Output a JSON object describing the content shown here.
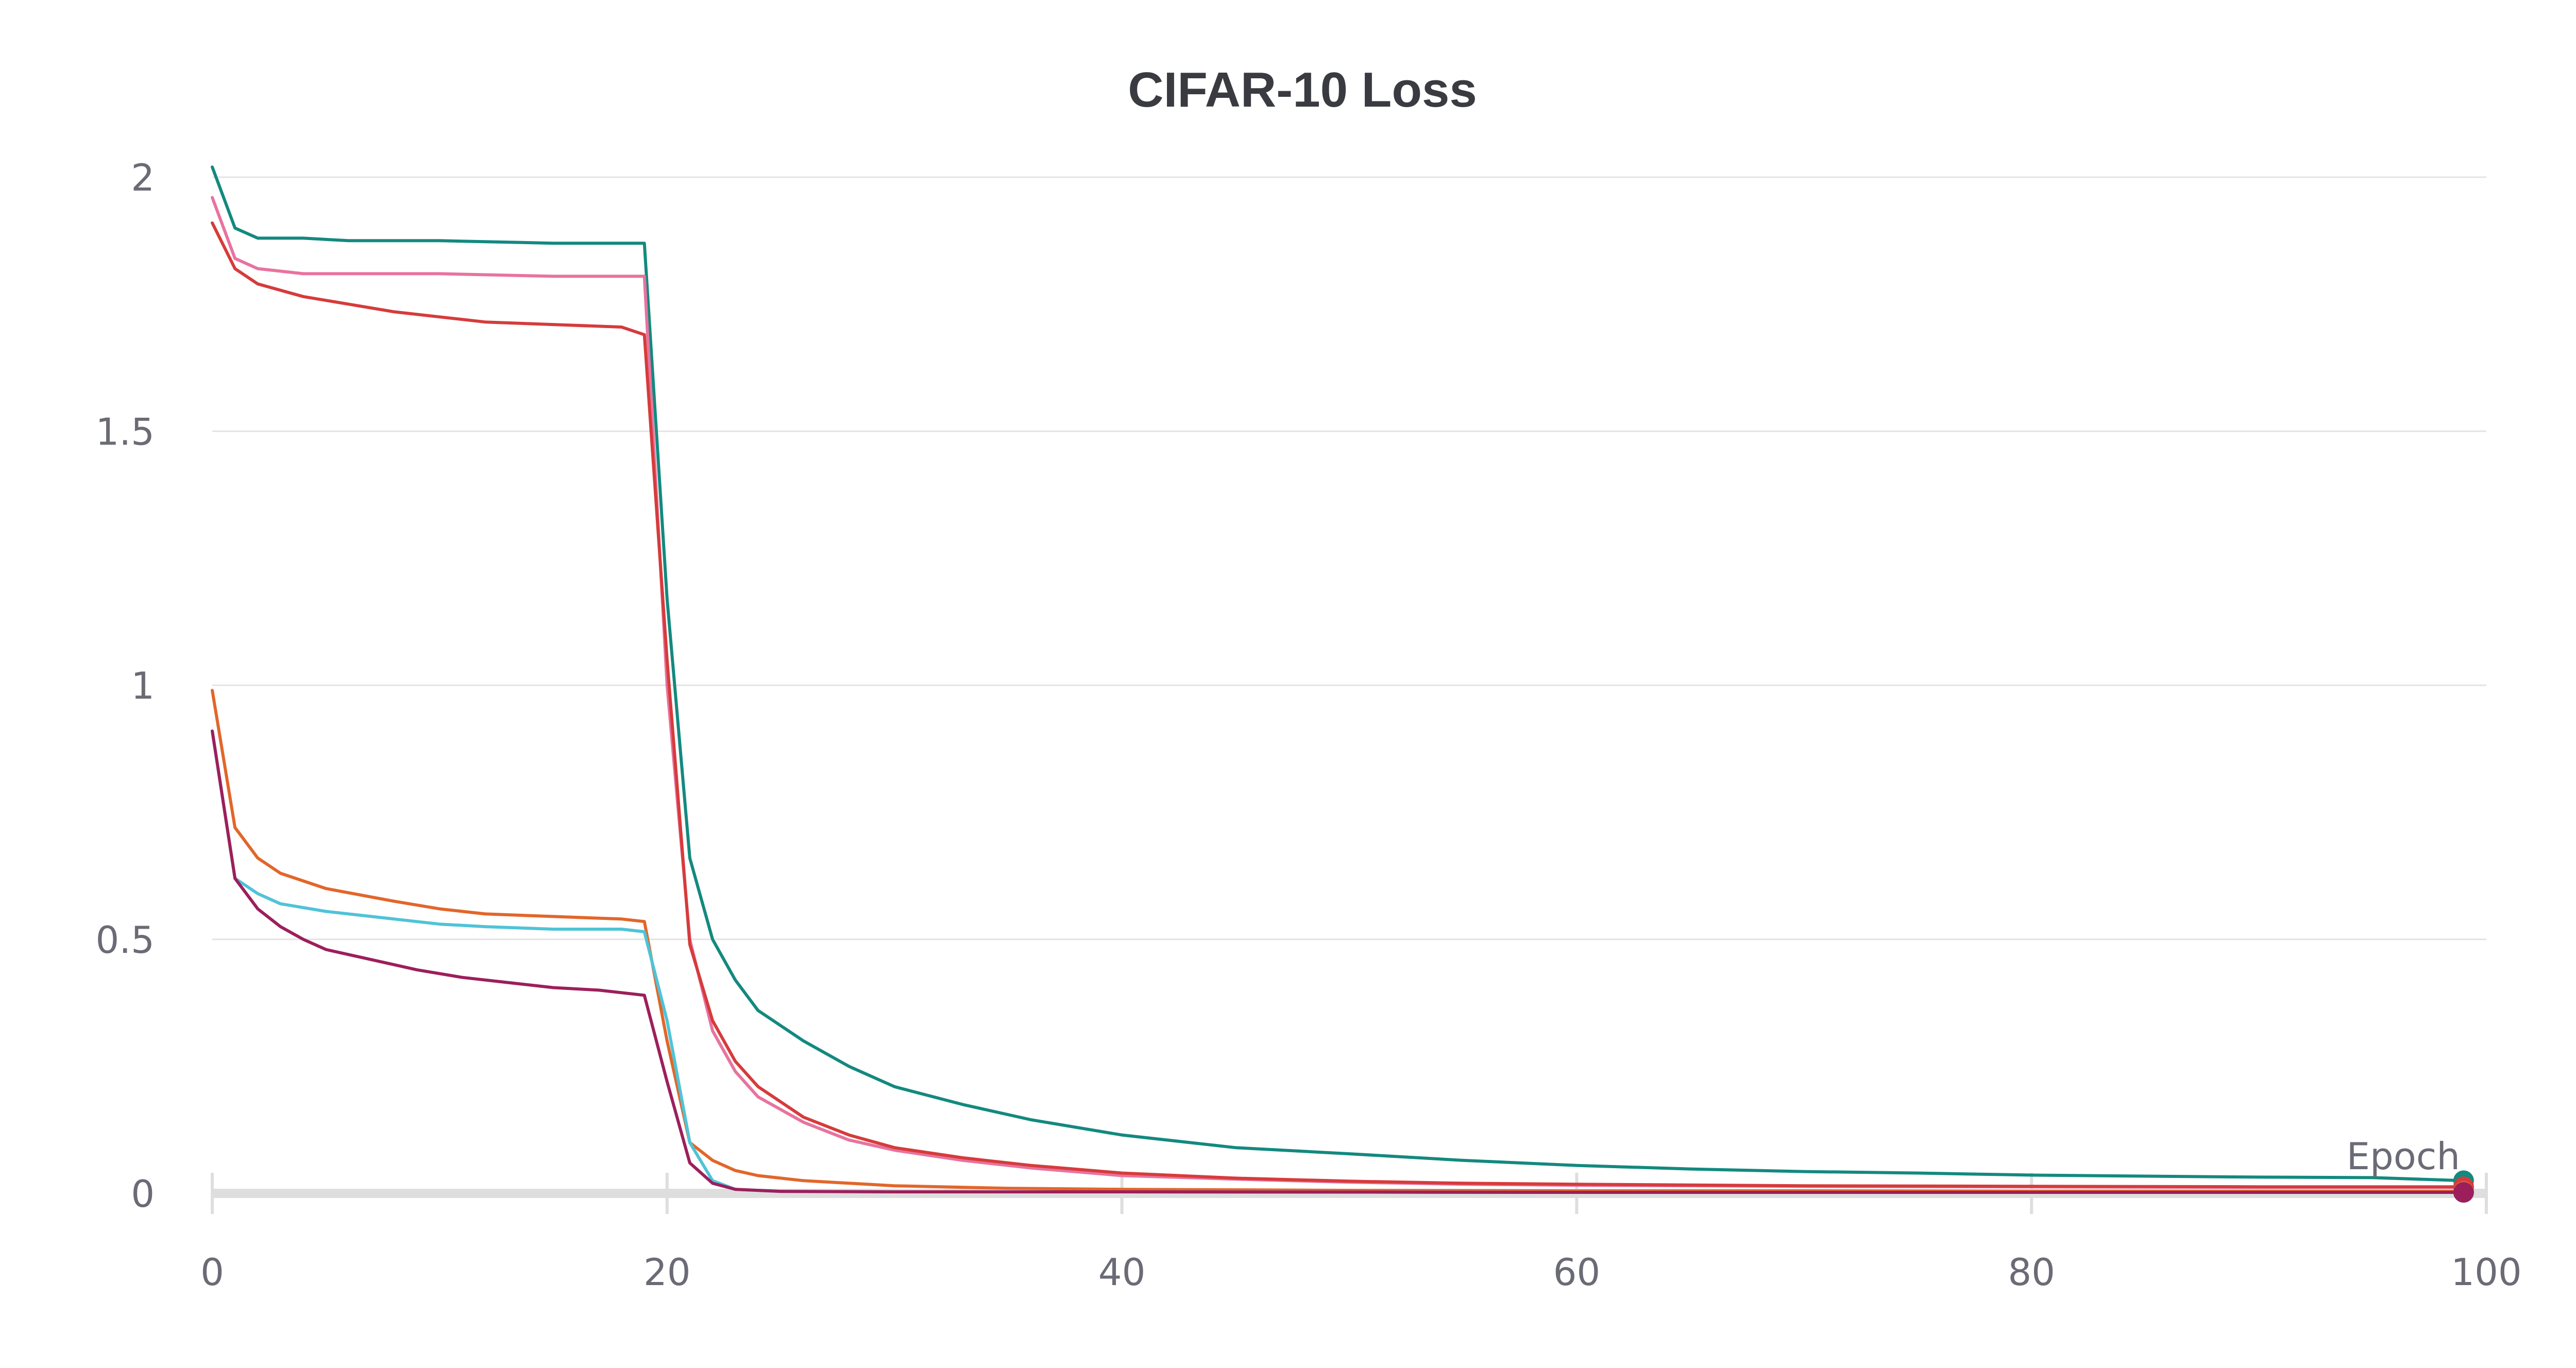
{
  "chart_data": {
    "type": "line",
    "title": "CIFAR-10 Loss",
    "xlabel": "Epoch",
    "ylabel": "",
    "xlim": [
      0,
      100
    ],
    "ylim": [
      0,
      2
    ],
    "x_ticks": [
      "0",
      "20",
      "40",
      "60",
      "80",
      "100"
    ],
    "y_ticks": [
      "0",
      "0.5",
      "1",
      "1.5",
      "2"
    ],
    "grid": "horizontal",
    "legend": "none",
    "series": [
      {
        "color": "#13897f",
        "points": [
          [
            0,
            2.02
          ],
          [
            1,
            1.9
          ],
          [
            2,
            1.88
          ],
          [
            4,
            1.88
          ],
          [
            6,
            1.875
          ],
          [
            10,
            1.875
          ],
          [
            15,
            1.87
          ],
          [
            19,
            1.87
          ],
          [
            20,
            1.17
          ],
          [
            21,
            0.66
          ],
          [
            22,
            0.5
          ],
          [
            23,
            0.42
          ],
          [
            24,
            0.36
          ],
          [
            26,
            0.3
          ],
          [
            28,
            0.25
          ],
          [
            30,
            0.21
          ],
          [
            33,
            0.175
          ],
          [
            36,
            0.145
          ],
          [
            40,
            0.115
          ],
          [
            45,
            0.09
          ],
          [
            50,
            0.078
          ],
          [
            55,
            0.065
          ],
          [
            60,
            0.055
          ],
          [
            65,
            0.048
          ],
          [
            70,
            0.043
          ],
          [
            75,
            0.04
          ],
          [
            80,
            0.036
          ],
          [
            85,
            0.034
          ],
          [
            90,
            0.032
          ],
          [
            95,
            0.031
          ],
          [
            99,
            0.025
          ]
        ]
      },
      {
        "color": "#e8739e",
        "points": [
          [
            0,
            1.96
          ],
          [
            1,
            1.84
          ],
          [
            2,
            1.82
          ],
          [
            4,
            1.81
          ],
          [
            6,
            1.81
          ],
          [
            10,
            1.81
          ],
          [
            15,
            1.805
          ],
          [
            19,
            1.805
          ],
          [
            20,
            1.0
          ],
          [
            21,
            0.5
          ],
          [
            22,
            0.32
          ],
          [
            23,
            0.24
          ],
          [
            24,
            0.19
          ],
          [
            26,
            0.14
          ],
          [
            28,
            0.105
          ],
          [
            30,
            0.085
          ],
          [
            33,
            0.065
          ],
          [
            36,
            0.05
          ],
          [
            40,
            0.035
          ],
          [
            45,
            0.028
          ],
          [
            50,
            0.022
          ],
          [
            55,
            0.018
          ],
          [
            60,
            0.016
          ],
          [
            70,
            0.014
          ],
          [
            80,
            0.013
          ],
          [
            90,
            0.012
          ],
          [
            99,
            0.012
          ]
        ]
      },
      {
        "color": "#d63b3b",
        "points": [
          [
            0,
            1.91
          ],
          [
            1,
            1.82
          ],
          [
            2,
            1.79
          ],
          [
            4,
            1.765
          ],
          [
            6,
            1.75
          ],
          [
            8,
            1.735
          ],
          [
            10,
            1.725
          ],
          [
            12,
            1.715
          ],
          [
            15,
            1.71
          ],
          [
            18,
            1.705
          ],
          [
            19,
            1.69
          ],
          [
            20,
            1.05
          ],
          [
            21,
            0.49
          ],
          [
            22,
            0.34
          ],
          [
            23,
            0.26
          ],
          [
            24,
            0.21
          ],
          [
            26,
            0.15
          ],
          [
            28,
            0.115
          ],
          [
            30,
            0.09
          ],
          [
            33,
            0.07
          ],
          [
            36,
            0.055
          ],
          [
            40,
            0.04
          ],
          [
            45,
            0.03
          ],
          [
            50,
            0.024
          ],
          [
            55,
            0.02
          ],
          [
            60,
            0.018
          ],
          [
            70,
            0.015
          ],
          [
            80,
            0.014
          ],
          [
            90,
            0.013
          ],
          [
            99,
            0.013
          ]
        ]
      },
      {
        "color": "#e2662a",
        "points": [
          [
            0,
            0.99
          ],
          [
            1,
            0.72
          ],
          [
            2,
            0.66
          ],
          [
            3,
            0.63
          ],
          [
            5,
            0.6
          ],
          [
            8,
            0.575
          ],
          [
            10,
            0.56
          ],
          [
            12,
            0.55
          ],
          [
            15,
            0.545
          ],
          [
            18,
            0.54
          ],
          [
            19,
            0.535
          ],
          [
            20,
            0.3
          ],
          [
            21,
            0.1
          ],
          [
            22,
            0.065
          ],
          [
            23,
            0.045
          ],
          [
            24,
            0.035
          ],
          [
            26,
            0.025
          ],
          [
            30,
            0.015
          ],
          [
            35,
            0.01
          ],
          [
            40,
            0.008
          ],
          [
            50,
            0.006
          ],
          [
            60,
            0.005
          ],
          [
            70,
            0.005
          ],
          [
            80,
            0.004
          ],
          [
            90,
            0.004
          ],
          [
            99,
            0.004
          ]
        ]
      },
      {
        "color": "#4fc3d7",
        "points": [
          [
            0,
            0.91
          ],
          [
            1,
            0.62
          ],
          [
            2,
            0.59
          ],
          [
            3,
            0.57
          ],
          [
            5,
            0.555
          ],
          [
            8,
            0.54
          ],
          [
            10,
            0.53
          ],
          [
            12,
            0.525
          ],
          [
            15,
            0.52
          ],
          [
            18,
            0.52
          ],
          [
            19,
            0.515
          ],
          [
            20,
            0.34
          ],
          [
            21,
            0.1
          ],
          [
            22,
            0.025
          ],
          [
            23,
            0.008
          ],
          [
            25,
            0.004
          ],
          [
            30,
            0.003
          ],
          [
            40,
            0.003
          ],
          [
            60,
            0.002
          ],
          [
            80,
            0.002
          ],
          [
            99,
            0.002
          ]
        ]
      },
      {
        "color": "#9c1f5b",
        "points": [
          [
            0,
            0.91
          ],
          [
            1,
            0.62
          ],
          [
            2,
            0.56
          ],
          [
            3,
            0.525
          ],
          [
            4,
            0.5
          ],
          [
            5,
            0.48
          ],
          [
            7,
            0.46
          ],
          [
            9,
            0.44
          ],
          [
            11,
            0.425
          ],
          [
            13,
            0.415
          ],
          [
            15,
            0.405
          ],
          [
            17,
            0.4
          ],
          [
            19,
            0.39
          ],
          [
            20,
            0.22
          ],
          [
            21,
            0.06
          ],
          [
            22,
            0.02
          ],
          [
            23,
            0.008
          ],
          [
            25,
            0.004
          ],
          [
            30,
            0.003
          ],
          [
            40,
            0.003
          ],
          [
            60,
            0.002
          ],
          [
            80,
            0.002
          ],
          [
            99,
            0.002
          ]
        ]
      }
    ]
  }
}
